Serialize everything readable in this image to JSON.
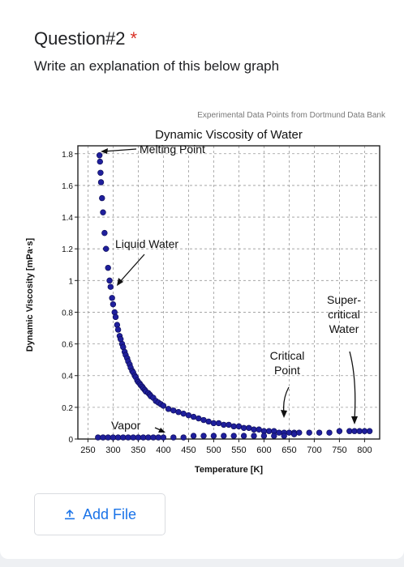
{
  "question": {
    "title": "Question#2",
    "required_marker": "*",
    "description": "Write an explanation of this below graph"
  },
  "upload": {
    "label": "Add File",
    "icon": "upload-icon"
  },
  "colors": {
    "accent": "#1a73e8",
    "required": "#d93025",
    "points": "#1f1f9c"
  },
  "chart_data": {
    "type": "scatter",
    "source_note": "Experimental Data Points from Dortmund Data Bank",
    "title": "Dynamic Viscosity of Water",
    "xlabel": "Temperature [K]",
    "ylabel": "Dynamic Viscosity [mPa·s]",
    "xlim": [
      230,
      830
    ],
    "ylim": [
      0,
      1.85
    ],
    "xticks": [
      250,
      300,
      350,
      400,
      450,
      500,
      550,
      600,
      650,
      700,
      750,
      800
    ],
    "yticks": [
      0,
      0.2,
      0.4,
      0.6,
      0.8,
      1,
      1.2,
      1.4,
      1.6,
      1.8
    ],
    "ytick_labels": [
      "0",
      "0.2",
      "0.4",
      "0.6",
      "0.8",
      "1",
      "1.2",
      "1.4",
      "1.6",
      "1.8"
    ],
    "grid": true,
    "series": [
      {
        "x": [
          273,
          274,
          275,
          276,
          278,
          280,
          283,
          286,
          290,
          293,
          295,
          298,
          300,
          303,
          305,
          308,
          310,
          313,
          315,
          318,
          320,
          323,
          325,
          328,
          330,
          333,
          335,
          338,
          340,
          343,
          345,
          348,
          350,
          353,
          355,
          358,
          360,
          363,
          365,
          370,
          373,
          375,
          380,
          385,
          390,
          395,
          400,
          410,
          420,
          430,
          440,
          450,
          460,
          470,
          480,
          490,
          500,
          510,
          520,
          530,
          540,
          550,
          560,
          570,
          580,
          590,
          600,
          610,
          620,
          630,
          640,
          650,
          660,
          670,
          690,
          710,
          730,
          750,
          770,
          780,
          790,
          800,
          810
        ],
        "y": [
          1.79,
          1.75,
          1.68,
          1.62,
          1.52,
          1.43,
          1.3,
          1.2,
          1.08,
          1.0,
          0.96,
          0.89,
          0.85,
          0.8,
          0.77,
          0.72,
          0.69,
          0.65,
          0.63,
          0.6,
          0.58,
          0.55,
          0.53,
          0.51,
          0.49,
          0.47,
          0.45,
          0.43,
          0.42,
          0.4,
          0.39,
          0.37,
          0.36,
          0.35,
          0.34,
          0.33,
          0.32,
          0.31,
          0.3,
          0.29,
          0.28,
          0.27,
          0.26,
          0.24,
          0.23,
          0.22,
          0.21,
          0.19,
          0.18,
          0.17,
          0.16,
          0.15,
          0.14,
          0.13,
          0.12,
          0.11,
          0.1,
          0.1,
          0.09,
          0.09,
          0.08,
          0.08,
          0.07,
          0.07,
          0.06,
          0.06,
          0.05,
          0.05,
          0.05,
          0.04,
          0.04,
          0.04,
          0.04,
          0.04,
          0.04,
          0.04,
          0.04,
          0.05,
          0.05,
          0.05,
          0.05,
          0.05,
          0.05
        ]
      },
      {
        "x": [
          270,
          280,
          290,
          300,
          310,
          320,
          330,
          340,
          350,
          360,
          370,
          380,
          390,
          400,
          420,
          440,
          460,
          480,
          500,
          520,
          540,
          560,
          580,
          600,
          620,
          640,
          660
        ],
        "y": [
          0.01,
          0.01,
          0.01,
          0.01,
          0.01,
          0.01,
          0.01,
          0.01,
          0.01,
          0.01,
          0.01,
          0.01,
          0.01,
          0.01,
          0.01,
          0.01,
          0.02,
          0.02,
          0.02,
          0.02,
          0.02,
          0.02,
          0.02,
          0.02,
          0.02,
          0.02,
          0.03
        ]
      }
    ],
    "annotations": [
      {
        "text": "Melting Point",
        "x": 273,
        "y": 1.8
      },
      {
        "text": "Liquid Water",
        "x": 300,
        "y": 1.0
      },
      {
        "text": "Vapor",
        "x": 350,
        "y": 0.02
      },
      {
        "text": "Critical Point",
        "x": 647,
        "y": 0.05
      },
      {
        "text": "Super-critical Water",
        "x": 800,
        "y": 0.05
      }
    ]
  }
}
